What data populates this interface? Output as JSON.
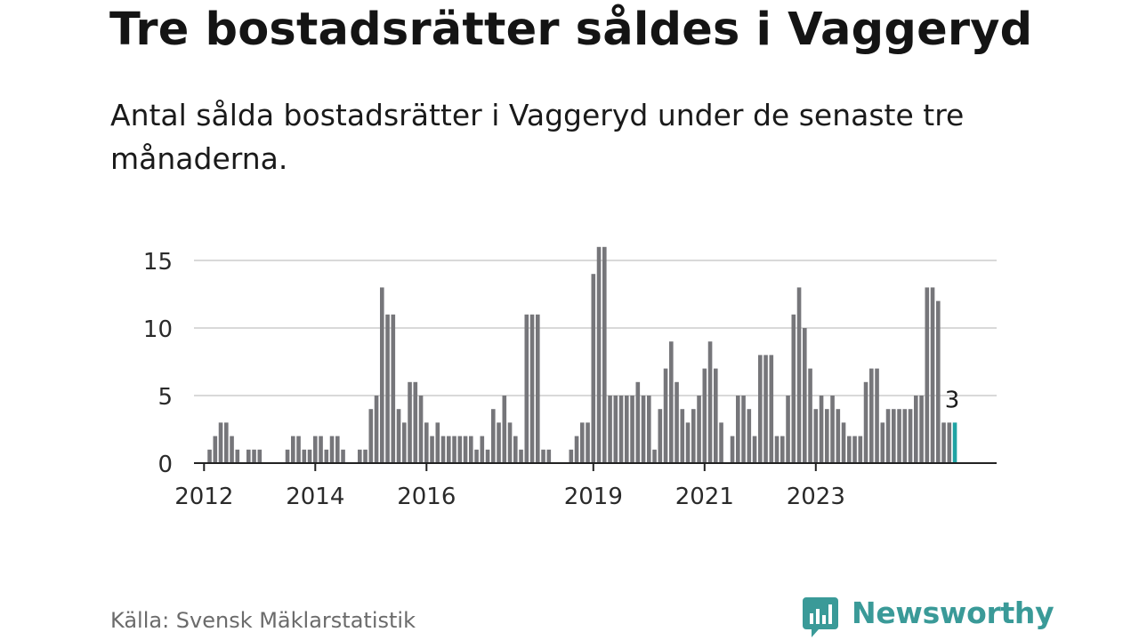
{
  "title": "Tre bostadsrätter såldes i Vaggeryd",
  "subtitle": "Antal sålda bostadsrätter i Vaggeryd under de senaste tre månaderna.",
  "source": "Källa: Svensk Mäklarstatistik",
  "brand": {
    "name": "Newsworthy",
    "color": "#3a9a98"
  },
  "chart_data": {
    "type": "bar",
    "title": "Tre bostadsrätter såldes i Vaggeryd",
    "xlabel": "",
    "ylabel": "",
    "ylim": [
      0,
      16
    ],
    "yticks": [
      0,
      5,
      10,
      15
    ],
    "grid": true,
    "bar_color": "#76767a",
    "highlight_color": "#1fa3a3",
    "x_ticks": [
      {
        "label": "2012",
        "index": 0
      },
      {
        "label": "2014",
        "index": 20
      },
      {
        "label": "2016",
        "index": 40
      },
      {
        "label": "2019",
        "index": 70
      },
      {
        "label": "2021",
        "index": 90
      },
      {
        "label": "2023",
        "index": 110
      }
    ],
    "values": [
      0,
      1,
      2,
      3,
      3,
      2,
      1,
      0,
      1,
      1,
      1,
      0,
      0,
      0,
      0,
      1,
      2,
      2,
      1,
      1,
      2,
      2,
      1,
      2,
      2,
      1,
      0,
      0,
      1,
      1,
      4,
      5,
      13,
      11,
      11,
      4,
      3,
      6,
      6,
      5,
      3,
      2,
      3,
      2,
      2,
      2,
      2,
      2,
      2,
      1,
      2,
      1,
      4,
      3,
      5,
      3,
      2,
      1,
      11,
      11,
      11,
      1,
      1,
      0,
      0,
      0,
      1,
      2,
      3,
      3,
      14,
      16,
      16,
      5,
      5,
      5,
      5,
      5,
      6,
      5,
      5,
      1,
      4,
      7,
      9,
      6,
      4,
      3,
      4,
      5,
      7,
      9,
      7,
      3,
      0,
      2,
      5,
      5,
      4,
      2,
      8,
      8,
      8,
      2,
      2,
      5,
      11,
      13,
      10,
      7,
      4,
      5,
      4,
      5,
      4,
      3,
      2,
      2,
      2,
      6,
      7,
      7,
      3,
      4,
      4,
      4,
      4,
      4,
      5,
      5,
      13,
      13,
      12,
      3,
      3,
      3
    ],
    "annotations": [
      {
        "index": 135,
        "label": "3"
      }
    ]
  }
}
